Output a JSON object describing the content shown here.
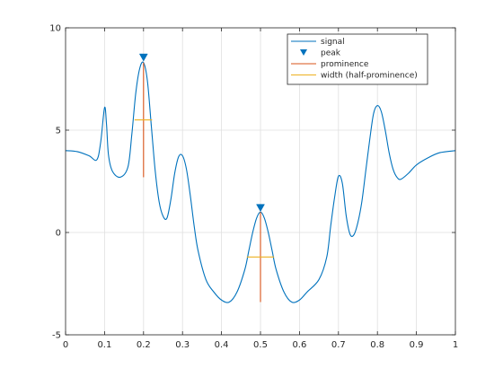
{
  "chart_data": {
    "type": "line",
    "title": "",
    "xlabel": "",
    "ylabel": "",
    "xlim": [
      0,
      1
    ],
    "ylim": [
      -5,
      10
    ],
    "x_ticks": [
      0,
      0.1,
      0.2,
      0.3,
      0.4,
      0.5,
      0.6,
      0.7,
      0.8,
      0.9,
      1
    ],
    "x_tick_labels": [
      "0",
      "0.1",
      "0.2",
      "0.3",
      "0.4",
      "0.5",
      "0.6",
      "0.7",
      "0.8",
      "0.9",
      "1"
    ],
    "y_ticks": [
      -5,
      0,
      5,
      10
    ],
    "y_tick_labels": [
      "-5",
      "0",
      "5",
      "10"
    ],
    "grid": true,
    "legend_position": "top-right",
    "series": [
      {
        "name": "signal",
        "style": "line",
        "color": "#0072bd",
        "x": [
          0,
          0.03,
          0.06,
          0.08,
          0.09,
          0.1,
          0.105,
          0.11,
          0.12,
          0.14,
          0.16,
          0.17,
          0.18,
          0.19,
          0.2,
          0.21,
          0.22,
          0.23,
          0.24,
          0.25,
          0.26,
          0.27,
          0.28,
          0.29,
          0.3,
          0.31,
          0.32,
          0.33,
          0.34,
          0.36,
          0.38,
          0.4,
          0.42,
          0.44,
          0.46,
          0.47,
          0.48,
          0.49,
          0.5,
          0.51,
          0.52,
          0.53,
          0.54,
          0.56,
          0.58,
          0.6,
          0.62,
          0.65,
          0.67,
          0.68,
          0.69,
          0.7,
          0.71,
          0.72,
          0.73,
          0.74,
          0.75,
          0.76,
          0.77,
          0.78,
          0.79,
          0.8,
          0.81,
          0.82,
          0.83,
          0.84,
          0.85,
          0.86,
          0.88,
          0.9,
          0.93,
          0.96,
          1.0
        ],
        "y": [
          4.0,
          3.95,
          3.75,
          3.55,
          4.4,
          6.1,
          5.3,
          3.8,
          3.0,
          2.7,
          3.2,
          4.8,
          6.8,
          8.0,
          8.3,
          7.4,
          5.2,
          3.0,
          1.5,
          0.8,
          0.7,
          1.6,
          2.9,
          3.7,
          3.75,
          3.1,
          1.8,
          0.3,
          -0.9,
          -2.3,
          -2.9,
          -3.3,
          -3.4,
          -2.9,
          -1.8,
          -0.9,
          0.0,
          0.7,
          1.0,
          0.7,
          0.0,
          -0.9,
          -1.8,
          -2.9,
          -3.4,
          -3.3,
          -2.9,
          -2.3,
          -1.2,
          0.3,
          1.7,
          2.75,
          2.4,
          0.8,
          -0.1,
          -0.1,
          0.5,
          1.5,
          3.0,
          4.5,
          5.8,
          6.2,
          5.9,
          5.0,
          3.9,
          3.1,
          2.7,
          2.6,
          2.9,
          3.3,
          3.65,
          3.9,
          4.0
        ]
      },
      {
        "name": "peak",
        "style": "marker",
        "marker": "triangle-down",
        "color": "#0072bd",
        "x": [
          0.2,
          0.5
        ],
        "y": [
          8.55,
          1.2
        ]
      },
      {
        "name": "prominence",
        "style": "vertical-segment",
        "color": "#d95319",
        "segments": [
          {
            "x": 0.2,
            "y_from": 2.7,
            "y_to": 8.3
          },
          {
            "x": 0.5,
            "y_from": -3.4,
            "y_to": 1.0
          }
        ]
      },
      {
        "name": "width (half-prominence)",
        "style": "horizontal-segment",
        "color": "#edb120",
        "segments": [
          {
            "y": 5.5,
            "x_from": 0.177,
            "x_to": 0.222
          },
          {
            "y": -1.2,
            "x_from": 0.465,
            "x_to": 0.535
          }
        ]
      }
    ]
  }
}
